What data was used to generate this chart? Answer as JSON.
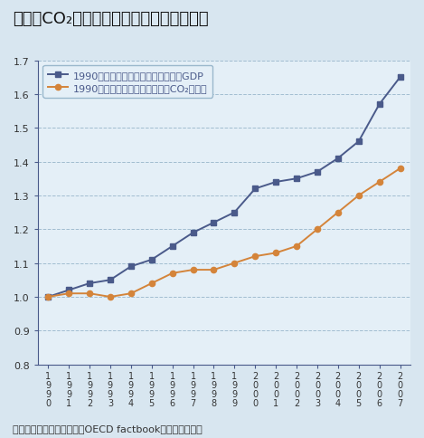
{
  "title": "経済とCO₂排出量の相対的デカップリング",
  "years": [
    1990,
    1991,
    1992,
    1993,
    1994,
    1995,
    1996,
    1997,
    1998,
    1999,
    2000,
    2001,
    2002,
    2003,
    2004,
    2005,
    2006,
    2007
  ],
  "gdp": [
    1.0,
    1.02,
    1.04,
    1.05,
    1.09,
    1.11,
    1.15,
    1.19,
    1.22,
    1.25,
    1.32,
    1.34,
    1.35,
    1.37,
    1.41,
    1.46,
    1.57,
    1.65
  ],
  "co2": [
    1.0,
    1.01,
    1.01,
    1.0,
    1.01,
    1.04,
    1.07,
    1.08,
    1.08,
    1.1,
    1.12,
    1.13,
    1.15,
    1.2,
    1.25,
    1.3,
    1.34,
    1.38
  ],
  "gdp_label": "1990年を１としたときの各年の実質GDP",
  "co2_label": "1990年を１としたときの各年のCO₂排出量",
  "gdp_color": "#4a5a8a",
  "co2_color": "#d4843a",
  "bg_color": "#d8e6f0",
  "plot_bg_color": "#e4eff7",
  "grid_color": "#9ab8cc",
  "axis_color": "#4a5a8a",
  "tick_color": "#333333",
  "ylim": [
    0.8,
    1.7
  ],
  "yticks": [
    0.8,
    0.9,
    1.0,
    1.1,
    1.2,
    1.3,
    1.4,
    1.5,
    1.6,
    1.7
  ],
  "caption": "資料：国連統計部資料及びOECD factbookより環境省作成",
  "title_fontsize": 13,
  "label_fontsize": 8,
  "caption_fontsize": 8
}
